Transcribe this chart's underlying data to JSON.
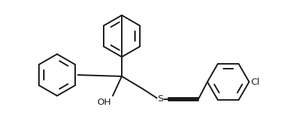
{
  "bg_color": "#ffffff",
  "line_color": "#1a1a1a",
  "line_width": 1.5,
  "font_size": 9.5,
  "label_OH": "OH",
  "label_S": "S",
  "label_Cl": "Cl",
  "figw": 4.34,
  "figh": 1.96,
  "dpi": 100
}
